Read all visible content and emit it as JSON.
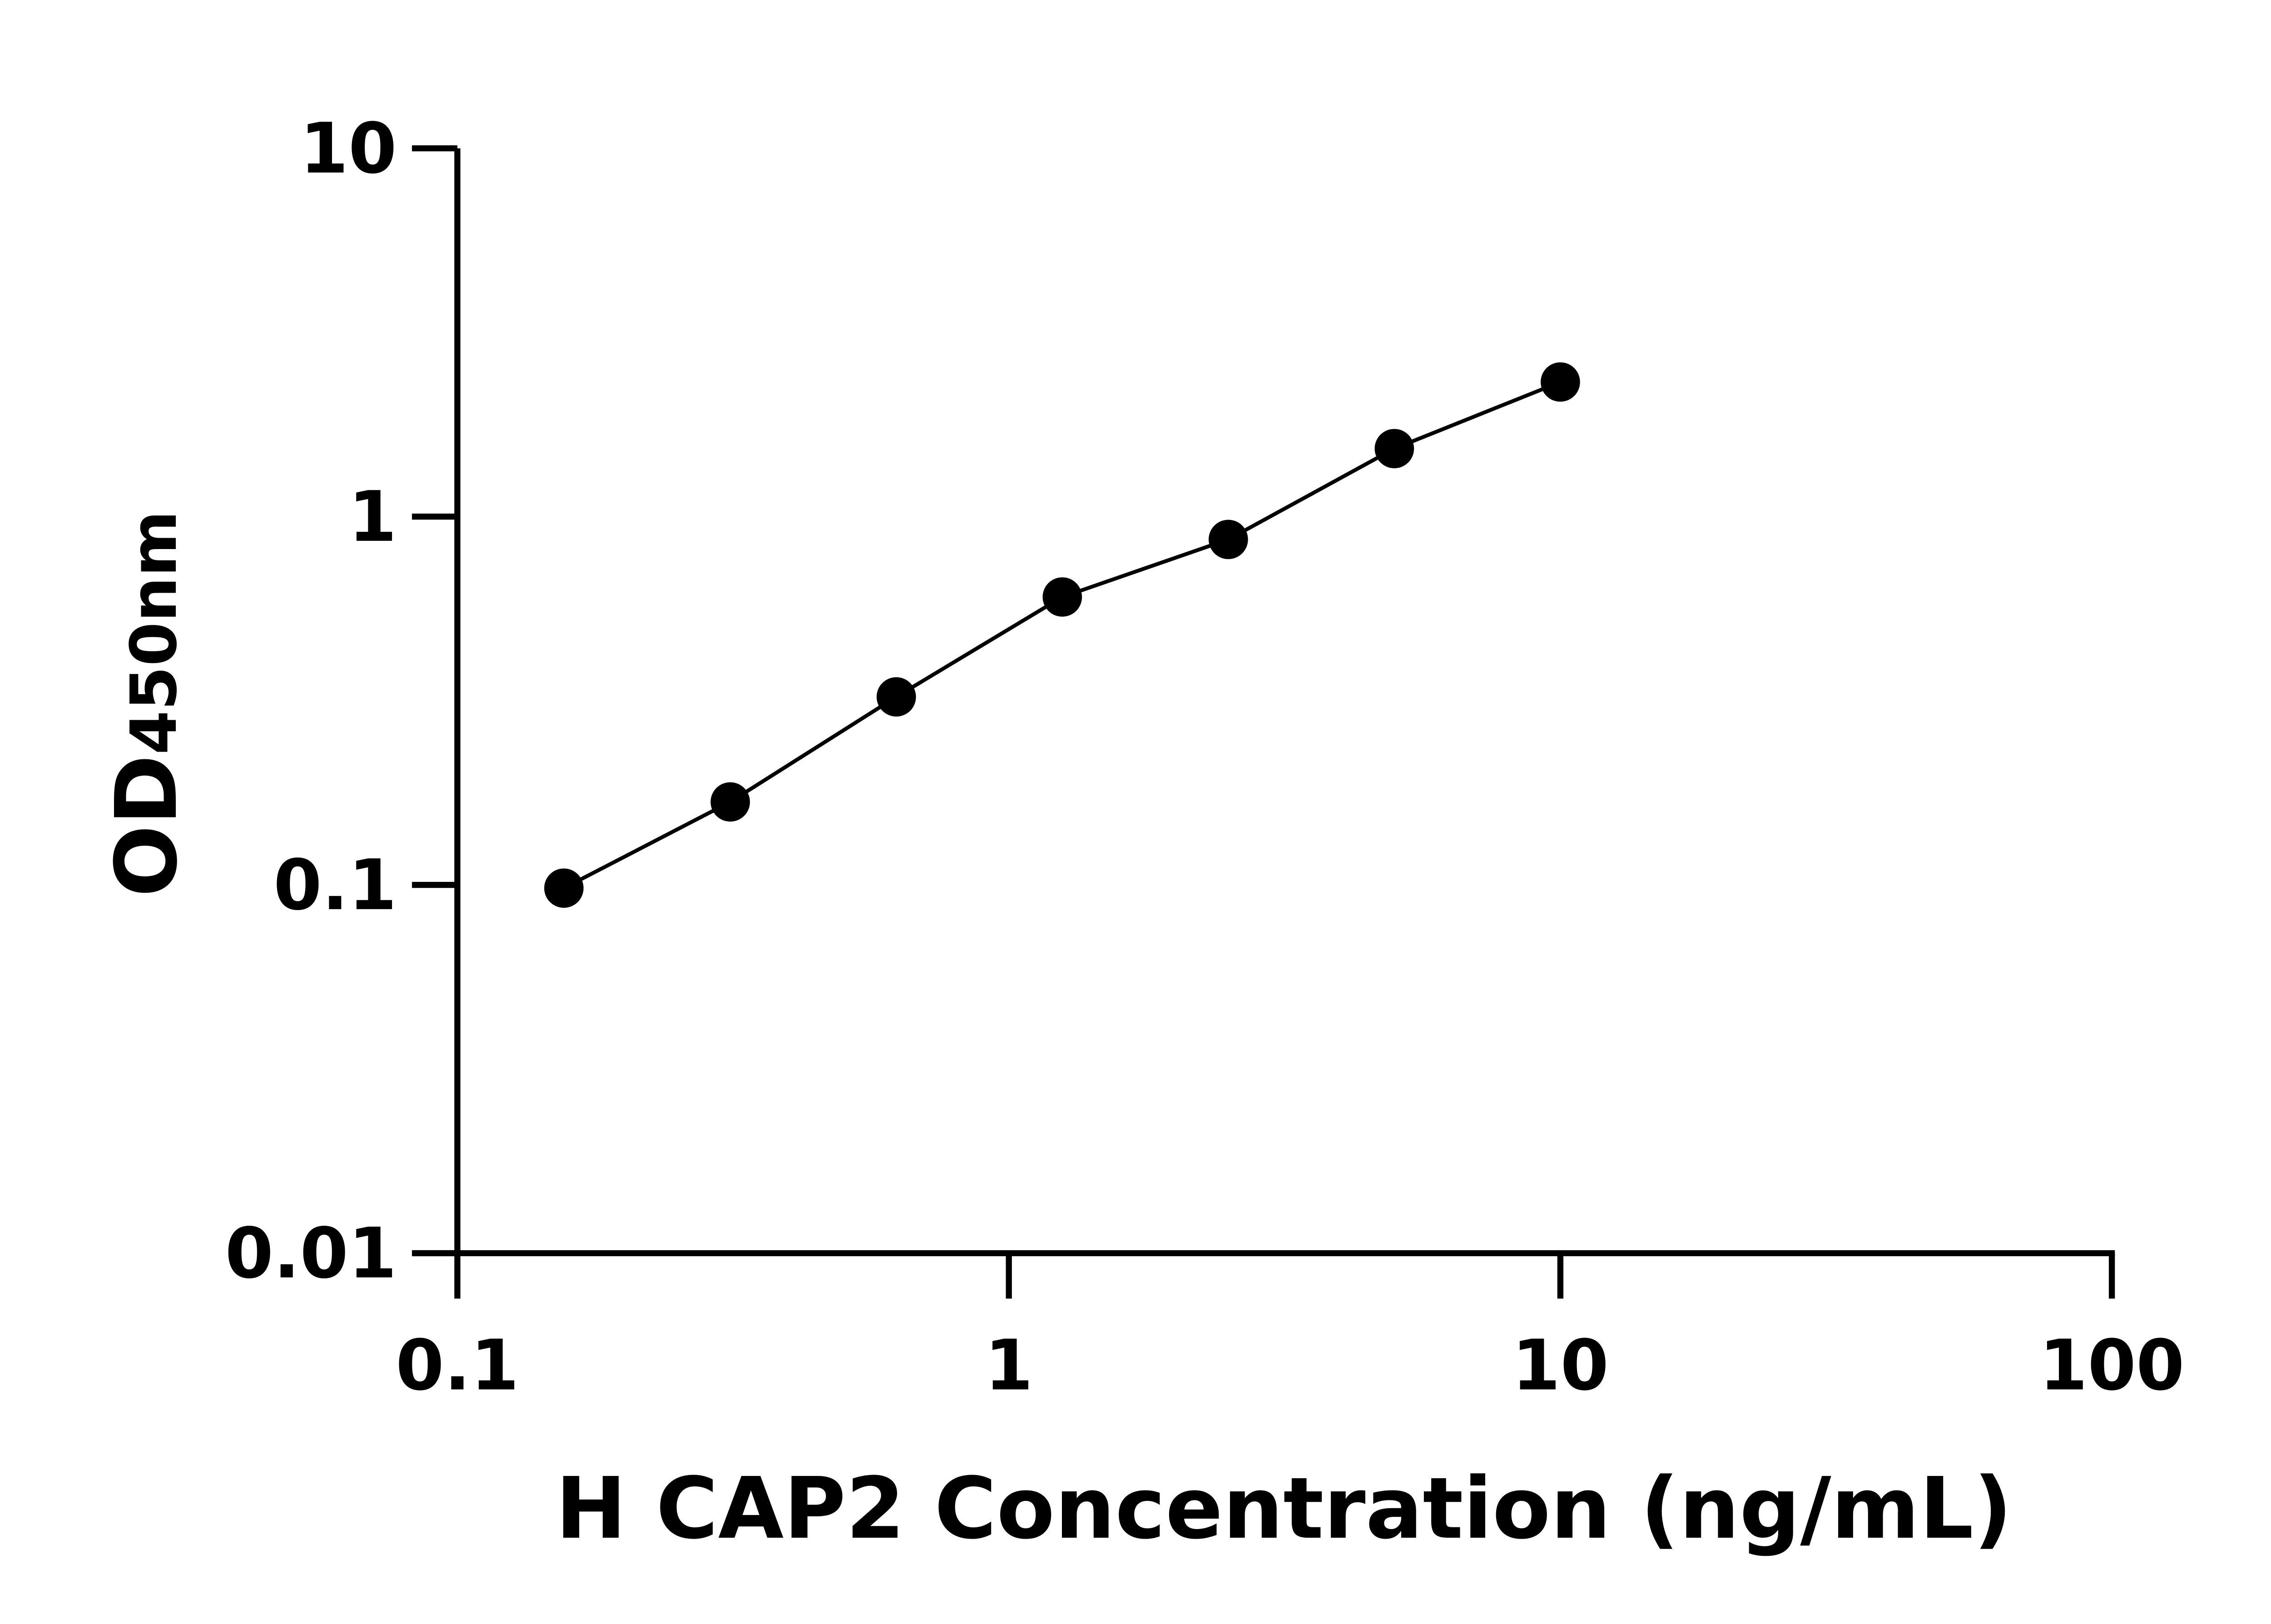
{
  "chart_data": {
    "type": "scatter",
    "title": "",
    "xlabel": "H CAP2 Concentration (ng/mL)",
    "ylabel_main": "OD",
    "ylabel_sub": "450nm",
    "x_scale": "log",
    "y_scale": "log",
    "xlim": [
      0.1,
      100
    ],
    "ylim": [
      0.01,
      10
    ],
    "x_ticks": [
      "0.1",
      "1",
      "10",
      "100"
    ],
    "y_ticks": [
      "0.01",
      "0.1",
      "1",
      "10"
    ],
    "grid": false,
    "legend": "none",
    "marker_color": "#000000",
    "line_color": "#000000",
    "x": [
      0.156,
      0.3125,
      0.625,
      1.25,
      2.5,
      5,
      10
    ],
    "y": [
      0.098,
      0.168,
      0.324,
      0.605,
      0.867,
      1.53,
      2.32
    ]
  }
}
